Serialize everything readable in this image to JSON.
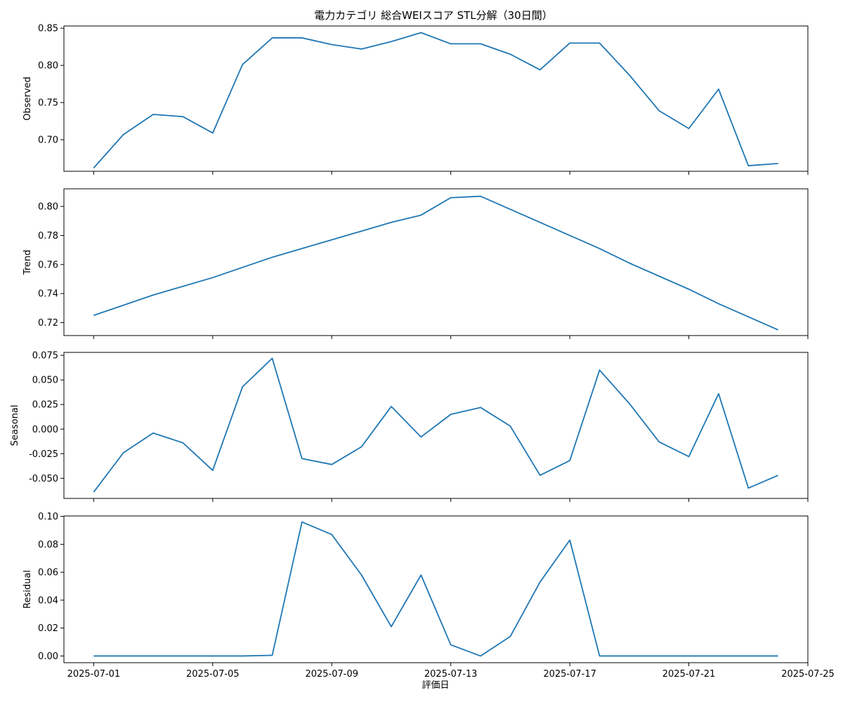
{
  "chart_data": {
    "type": "line",
    "title": "電力カテゴリ 総合WEIスコア STL分解（30日間）",
    "xlabel": "評価日",
    "x": [
      "2025-07-01",
      "2025-07-02",
      "2025-07-03",
      "2025-07-04",
      "2025-07-05",
      "2025-07-06",
      "2025-07-07",
      "2025-07-08",
      "2025-07-09",
      "2025-07-10",
      "2025-07-11",
      "2025-07-12",
      "2025-07-13",
      "2025-07-14",
      "2025-07-15",
      "2025-07-16",
      "2025-07-17",
      "2025-07-18",
      "2025-07-19",
      "2025-07-20",
      "2025-07-21",
      "2025-07-22",
      "2025-07-23",
      "2025-07-24"
    ],
    "xticks": [
      "2025-07-01",
      "2025-07-05",
      "2025-07-09",
      "2025-07-13",
      "2025-07-17",
      "2025-07-21",
      "2025-07-25"
    ],
    "xlim": [
      "2025-06-30",
      "2025-07-25"
    ],
    "grid": false,
    "panels": [
      {
        "name": "Observed",
        "ylabel": "Observed",
        "ylim": [
          0.6575,
          0.853
        ],
        "yticks": [
          "0.70",
          "0.75",
          "0.80",
          "0.85"
        ],
        "values": [
          0.662,
          0.707,
          0.734,
          0.731,
          0.709,
          0.801,
          0.837,
          0.837,
          0.828,
          0.822,
          0.832,
          0.844,
          0.829,
          0.829,
          0.815,
          0.794,
          0.83,
          0.83,
          0.787,
          0.739,
          0.715,
          0.768,
          0.665,
          0.668
        ]
      },
      {
        "name": "Trend",
        "ylabel": "Trend",
        "ylim": [
          0.7111,
          0.8121
        ],
        "yticks": [
          "0.72",
          "0.74",
          "0.76",
          "0.78",
          "0.80"
        ],
        "values": [
          0.725,
          0.732,
          0.739,
          0.745,
          0.751,
          0.758,
          0.765,
          0.771,
          0.777,
          0.783,
          0.789,
          0.794,
          0.806,
          0.807,
          0.798,
          0.789,
          0.78,
          0.771,
          0.761,
          0.752,
          0.743,
          0.733,
          0.724,
          0.715
        ]
      },
      {
        "name": "Seasonal",
        "ylabel": "Seasonal",
        "ylim": [
          -0.0705,
          0.078
        ],
        "yticks": [
          "0.075",
          "0.050",
          "0.025",
          "0.000",
          "-0.025",
          "-0.050"
        ],
        "values": [
          -0.064,
          -0.024,
          -0.004,
          -0.014,
          -0.042,
          0.043,
          0.072,
          -0.03,
          -0.036,
          -0.018,
          0.023,
          -0.008,
          0.015,
          0.022,
          0.003,
          -0.047,
          -0.032,
          0.06,
          0.026,
          -0.013,
          -0.028,
          0.036,
          -0.06,
          -0.047
        ]
      },
      {
        "name": "Residual",
        "ylabel": "Residual",
        "ylim": [
          -0.0048,
          0.1003
        ],
        "yticks": [
          "0.00",
          "0.02",
          "0.04",
          "0.06",
          "0.08",
          "0.10"
        ],
        "values": [
          0.0,
          0.0,
          0.0,
          0.0,
          0.0,
          0.0,
          0.0005,
          0.096,
          0.087,
          0.058,
          0.021,
          0.058,
          0.008,
          0.0,
          0.014,
          0.053,
          0.083,
          0.0,
          0.0,
          0.0,
          0.0,
          0.0,
          0.0,
          0.0
        ]
      }
    ]
  }
}
